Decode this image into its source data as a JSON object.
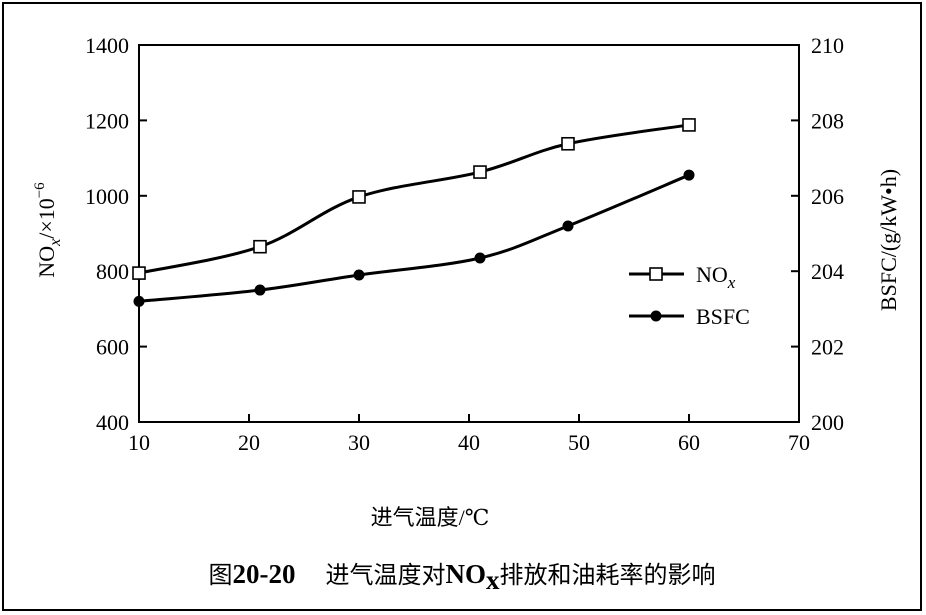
{
  "chart_data": {
    "type": "line",
    "x": [
      10,
      21,
      30,
      41,
      49,
      60
    ],
    "xlim": [
      10,
      70
    ],
    "xticks": [
      "10",
      "20",
      "30",
      "40",
      "50",
      "60",
      "70"
    ],
    "xlabel": "进气温度/℃",
    "ylim_left": [
      400,
      1400
    ],
    "yticks_left": [
      "400",
      "600",
      "800",
      "1000",
      "1200",
      "1400"
    ],
    "ylabel_left_main": "NO",
    "ylabel_left_sub": "x",
    "ylabel_left_tail": "/×10",
    "ylabel_left_sup": "−6",
    "ylim_right": [
      200,
      210
    ],
    "yticks_right": [
      "200",
      "202",
      "204",
      "206",
      "208",
      "210"
    ],
    "ylabel_right": "BSFC/(g/kW•h)",
    "grid": false,
    "legend_position": "center-right",
    "series": [
      {
        "name_main": "NO",
        "name_sub": "x",
        "axis": "left",
        "marker": "open-square",
        "values": [
          795,
          865,
          997,
          1063,
          1138,
          1188
        ]
      },
      {
        "name_main": "BSFC",
        "axis": "right",
        "marker": "filled-circle",
        "values": [
          203.2,
          203.5,
          203.9,
          204.35,
          205.2,
          206.55
        ]
      }
    ]
  },
  "caption": {
    "figure_label": "图",
    "figure_number": "20-20",
    "text_a": "进气温度对",
    "text_no": "NO",
    "text_sub": "x",
    "text_b": "排放和油耗率的影响"
  }
}
